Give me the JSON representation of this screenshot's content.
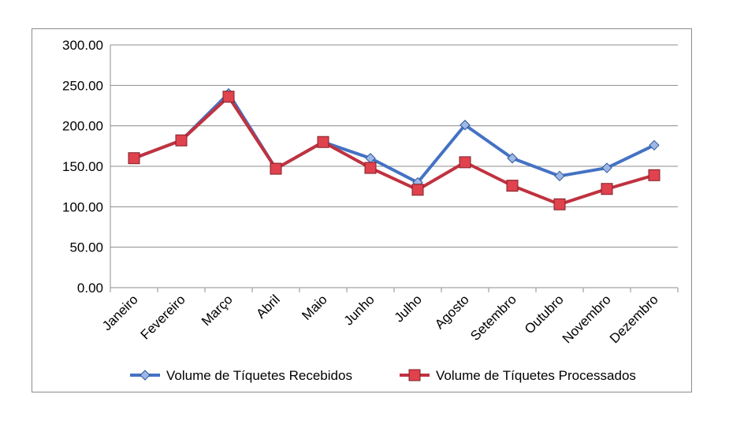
{
  "chart_data": {
    "type": "line",
    "categories": [
      "Janeiro",
      "Fevereiro",
      "Março",
      "Abril",
      "Maio",
      "Junho",
      "Julho",
      "Agosto",
      "Setembro",
      "Outubro",
      "Novembro",
      "Dezembro"
    ],
    "series": [
      {
        "name": "Volume de Tíquetes Recebidos",
        "color": "#4472c4",
        "marker": "diamond",
        "values": [
          160,
          182,
          240,
          147,
          180,
          160,
          130,
          201,
          160,
          138,
          148,
          176
        ]
      },
      {
        "name": "Volume de Tíquetes Processados",
        "color": "#c0323f",
        "marker": "square",
        "values": [
          160,
          182,
          236,
          147,
          180,
          148,
          121,
          155,
          126,
          103,
          122,
          139
        ]
      }
    ],
    "ylim": [
      0,
      300
    ],
    "yticks": [
      "0.00",
      "50.00",
      "100.00",
      "150.00",
      "200.00",
      "250.00",
      "300.00"
    ],
    "grid": true,
    "legend_position": "bottom",
    "title": "",
    "xlabel": "",
    "ylabel": ""
  }
}
